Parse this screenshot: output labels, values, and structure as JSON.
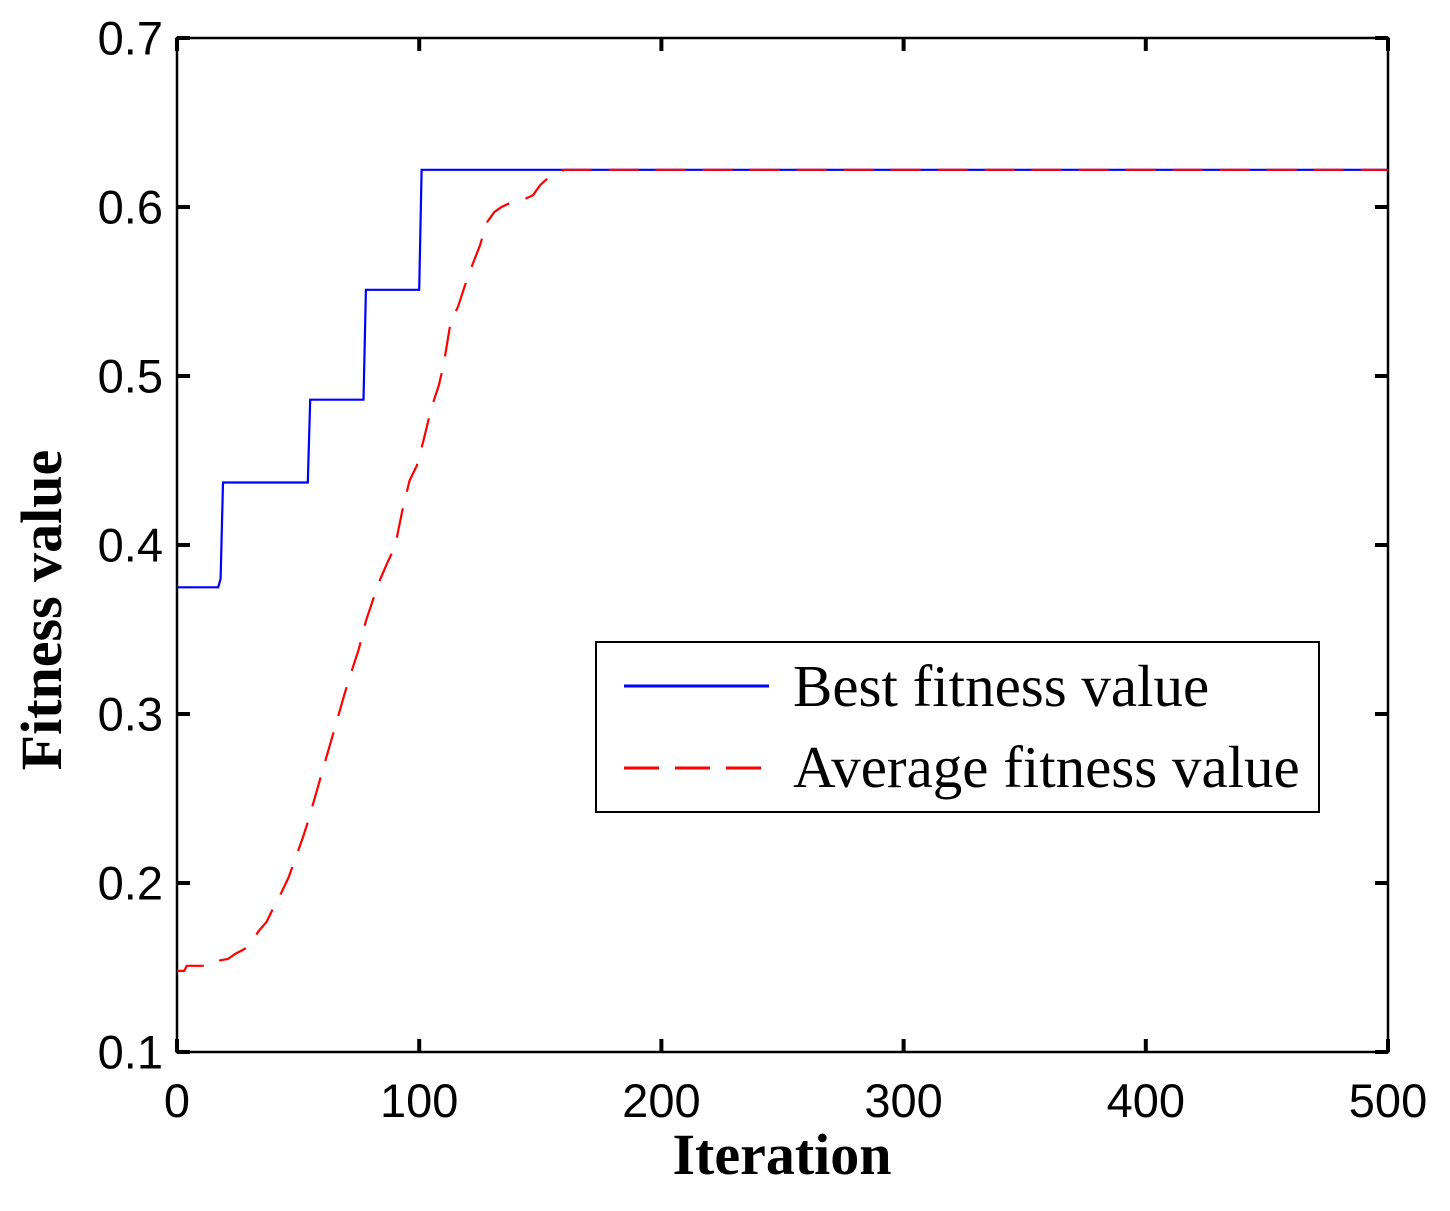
{
  "figure": {
    "background": "#ffffff",
    "axis_color": "#000000",
    "tick_label_color": "#000000"
  },
  "chart_data": {
    "type": "line",
    "title": "",
    "xlabel": "Iteration",
    "ylabel": "Fitness value",
    "xlim": [
      0,
      500
    ],
    "ylim": [
      0.1,
      0.7
    ],
    "xticks": [
      0,
      100,
      200,
      300,
      400,
      500
    ],
    "yticks": [
      0.1,
      0.2,
      0.3,
      0.4,
      0.5,
      0.6,
      0.7
    ],
    "grid": false,
    "box": true,
    "legend": {
      "position": "inside-center-right",
      "entries": [
        "Best fitness value",
        "Average fitness value"
      ]
    },
    "series": [
      {
        "name": "Best fitness value",
        "color": "#0000ff",
        "line_style": "solid",
        "points": [
          [
            0,
            0.375
          ],
          [
            17,
            0.375
          ],
          [
            18,
            0.38
          ],
          [
            19,
            0.437
          ],
          [
            54,
            0.437
          ],
          [
            55,
            0.486
          ],
          [
            77,
            0.486
          ],
          [
            78,
            0.551
          ],
          [
            100,
            0.551
          ],
          [
            101,
            0.622
          ],
          [
            500,
            0.622
          ]
        ]
      },
      {
        "name": "Average fitness value",
        "color": "#ff0000",
        "line_style": "dashed",
        "points": [
          [
            0,
            0.148
          ],
          [
            3,
            0.148
          ],
          [
            4,
            0.151
          ],
          [
            14,
            0.151
          ],
          [
            17,
            0.154
          ],
          [
            21,
            0.155
          ],
          [
            24,
            0.158
          ],
          [
            28,
            0.161
          ],
          [
            31,
            0.166
          ],
          [
            34,
            0.172
          ],
          [
            37,
            0.177
          ],
          [
            40,
            0.186
          ],
          [
            43,
            0.194
          ],
          [
            46,
            0.203
          ],
          [
            49,
            0.215
          ],
          [
            52,
            0.227
          ],
          [
            54,
            0.236
          ],
          [
            57,
            0.251
          ],
          [
            60,
            0.266
          ],
          [
            63,
            0.281
          ],
          [
            66,
            0.296
          ],
          [
            69,
            0.311
          ],
          [
            72,
            0.325
          ],
          [
            75,
            0.338
          ],
          [
            78,
            0.355
          ],
          [
            81,
            0.368
          ],
          [
            84,
            0.38
          ],
          [
            87,
            0.39
          ],
          [
            90,
            0.399
          ],
          [
            93,
            0.42
          ],
          [
            96,
            0.438
          ],
          [
            99,
            0.447
          ],
          [
            102,
            0.463
          ],
          [
            105,
            0.481
          ],
          [
            108,
            0.494
          ],
          [
            110,
            0.506
          ],
          [
            113,
            0.532
          ],
          [
            116,
            0.541
          ],
          [
            119,
            0.554
          ],
          [
            122,
            0.566
          ],
          [
            125,
            0.577
          ],
          [
            128,
            0.591
          ],
          [
            131,
            0.597
          ],
          [
            134,
            0.6
          ],
          [
            137,
            0.602
          ],
          [
            140,
            0.603
          ],
          [
            144,
            0.605
          ],
          [
            147,
            0.607
          ],
          [
            150,
            0.613
          ],
          [
            153,
            0.617
          ],
          [
            156,
            0.62
          ],
          [
            160,
            0.622
          ],
          [
            500,
            0.622
          ]
        ]
      }
    ]
  }
}
